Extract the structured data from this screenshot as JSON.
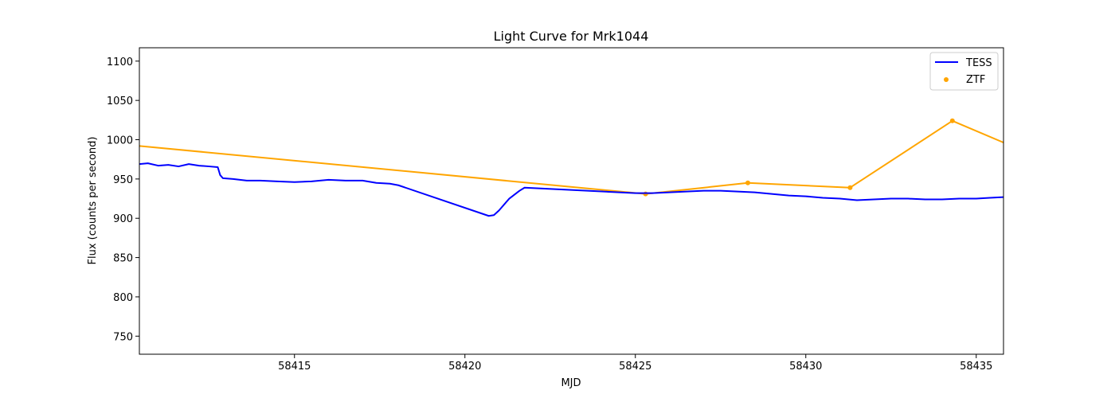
{
  "chart_data": {
    "type": "line",
    "title": "Light Curve for Mrk1044",
    "xlabel": "MJD",
    "ylabel": "Flux (counts per second)",
    "xlim": [
      58410.45,
      58435.8
    ],
    "ylim": [
      727,
      1117
    ],
    "xticks": [
      58415,
      58420,
      58425,
      58430,
      58435
    ],
    "yticks": [
      750,
      800,
      850,
      900,
      950,
      1000,
      1050,
      1100
    ],
    "grid": false,
    "legend_position": "top-right",
    "series": [
      {
        "name": "TESS",
        "style": "line",
        "color": "#0000ff",
        "x": [
          58410.45,
          58410.7,
          58411.0,
          58411.3,
          58411.6,
          58411.9,
          58412.2,
          58412.5,
          58412.75,
          58412.82,
          58412.9,
          58413.2,
          58413.6,
          58414.0,
          58414.5,
          58415.0,
          58415.5,
          58416.0,
          58416.5,
          58417.0,
          58417.4,
          58417.8,
          58418.05,
          58420.7,
          58420.85,
          58421.0,
          58421.3,
          58421.6,
          58421.75,
          58425.0,
          58425.5,
          58426.0,
          58426.5,
          58427.0,
          58427.5,
          58428.0,
          58428.5,
          58429.0,
          58429.5,
          58430.0,
          58430.5,
          58431.0,
          58431.5,
          58432.0,
          58432.5,
          58433.0,
          58433.5,
          58434.0,
          58434.5,
          58435.0,
          58435.4,
          58435.8
        ],
        "y": [
          969,
          970,
          967,
          968,
          966,
          969,
          967,
          966,
          965,
          955,
          951,
          950,
          948,
          948,
          947,
          946,
          947,
          949,
          948,
          948,
          945,
          944,
          942,
          903,
          904,
          910,
          925,
          935,
          939,
          932,
          932,
          933,
          934,
          935,
          935,
          934,
          933,
          931,
          929,
          928,
          926,
          925,
          923,
          924,
          925,
          925,
          924,
          924,
          925,
          925,
          926,
          927
        ]
      },
      {
        "name": "ZTF",
        "style": "scatter+line",
        "color": "#ffa500",
        "x": [
          58407.3,
          58425.3,
          58428.3,
          58431.3,
          58434.3,
          58437.4
        ],
        "y": [
          1005,
          931,
          945,
          939,
          1024,
          967
        ]
      }
    ]
  }
}
